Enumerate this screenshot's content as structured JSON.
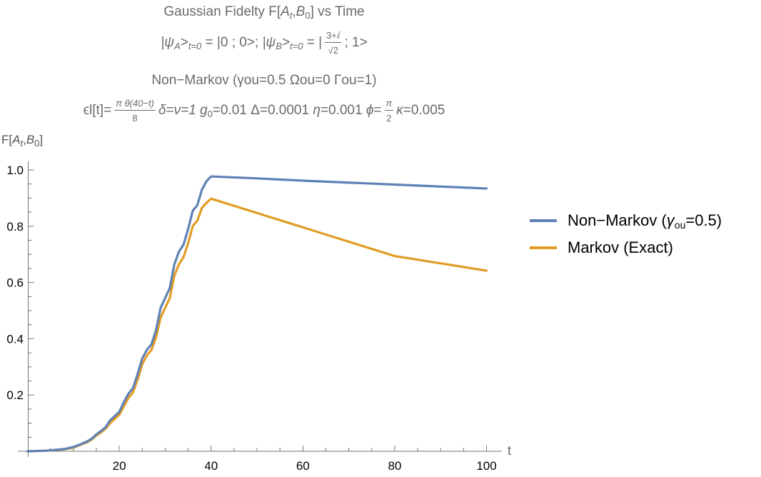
{
  "title": {
    "line1_prefix": "Gaussian Fidelty F[",
    "line1_A": "A",
    "line1_A_sub": "t",
    "line1_comma": ",",
    "line1_B": "B",
    "line1_B_sub": "0",
    "line1_suffix": "] vs Time",
    "line2_psiA": "|ψ",
    "line2_psiA_sub": "A",
    "line2_gt1": ">",
    "line2_t0_a": "t=0",
    "line2_mid": " = |0 ; 0>; ",
    "line2_psiB": "|ψ",
    "line2_psiB_sub": "B",
    "line2_gt2": ">",
    "line2_t0_b": "t=0",
    "line2_eq": " = |",
    "line2_frac_num": "3+ⅈ",
    "line2_frac_den": "√2",
    "line2_end": "; 1>",
    "line3": "Non−Markov (γou=0.5  Ωou=0 Γou=1)",
    "line4_eps": "ϵl[t]=",
    "line4_frac_num": "π θ(40−t)",
    "line4_frac_den": "8",
    "line4_mid1": "δ=ν=1 ",
    "line4_g": "g",
    "line4_g_sub": "0",
    "line4_mid2": "=0.01 Δ=0.0001 ",
    "line4_eta": "η",
    "line4_mid3": "=0.001 ",
    "line4_phi": "ϕ",
    "line4_mid4": "=",
    "line4_frac2_num": "π",
    "line4_frac2_den": "2",
    "line4_kappa": "κ",
    "line4_end": "=0.005"
  },
  "chart_data": {
    "type": "line",
    "title": "Gaussian Fidelty F[A_t,B_0] vs Time",
    "xlabel": "t",
    "ylabel": "F[A_t,B_0]",
    "xlim": [
      0,
      100
    ],
    "ylim": [
      0,
      1.0
    ],
    "x_ticks": [
      20,
      40,
      60,
      80,
      100
    ],
    "x_tick_labels": [
      "20",
      "40",
      "60",
      "80",
      "100"
    ],
    "y_ticks": [
      0.2,
      0.4,
      0.6,
      0.8,
      1.0
    ],
    "y_tick_labels": [
      "0.2",
      "0.4",
      "0.6",
      "0.8",
      "1.0"
    ],
    "grid": false,
    "legend_position": "right",
    "series": [
      {
        "name": "Non−Markov (γou=0.5)",
        "legend_main": "Non−Markov (",
        "legend_gamma": "γ",
        "legend_sub": "ou",
        "legend_end": "=0.5)",
        "color": "#5E81B5",
        "x": [
          0,
          4,
          8,
          10,
          12,
          13,
          14,
          15,
          16,
          17,
          18,
          19,
          20,
          21,
          22,
          23,
          24,
          25,
          26,
          27,
          28,
          29,
          30,
          31,
          32,
          33,
          34,
          35,
          36,
          37,
          38,
          39,
          40,
          50,
          60,
          70,
          80,
          90,
          100
        ],
        "y": [
          0.0,
          0.002,
          0.008,
          0.015,
          0.028,
          0.035,
          0.045,
          0.06,
          0.072,
          0.085,
          0.11,
          0.125,
          0.14,
          0.175,
          0.205,
          0.225,
          0.275,
          0.33,
          0.36,
          0.38,
          0.43,
          0.51,
          0.545,
          0.58,
          0.665,
          0.71,
          0.735,
          0.79,
          0.855,
          0.875,
          0.93,
          0.96,
          0.977,
          0.97,
          0.962,
          0.955,
          0.948,
          0.941,
          0.934
        ]
      },
      {
        "name": "Markov (Exact)",
        "legend_main": "Markov (Exact)",
        "color": "#E19C24",
        "x": [
          0,
          4,
          8,
          10,
          12,
          13,
          14,
          15,
          16,
          17,
          18,
          19,
          20,
          21,
          22,
          23,
          24,
          25,
          26,
          27,
          28,
          29,
          30,
          31,
          32,
          33,
          34,
          35,
          36,
          37,
          38,
          39,
          40,
          50,
          60,
          70,
          80,
          90,
          100
        ],
        "y": [
          0.0,
          0.002,
          0.007,
          0.013,
          0.026,
          0.032,
          0.042,
          0.056,
          0.067,
          0.08,
          0.1,
          0.115,
          0.13,
          0.16,
          0.19,
          0.21,
          0.255,
          0.31,
          0.34,
          0.36,
          0.405,
          0.475,
          0.51,
          0.545,
          0.625,
          0.665,
          0.69,
          0.74,
          0.8,
          0.82,
          0.865,
          0.883,
          0.898,
          0.847,
          0.796,
          0.745,
          0.694,
          0.668,
          0.642
        ]
      }
    ]
  }
}
